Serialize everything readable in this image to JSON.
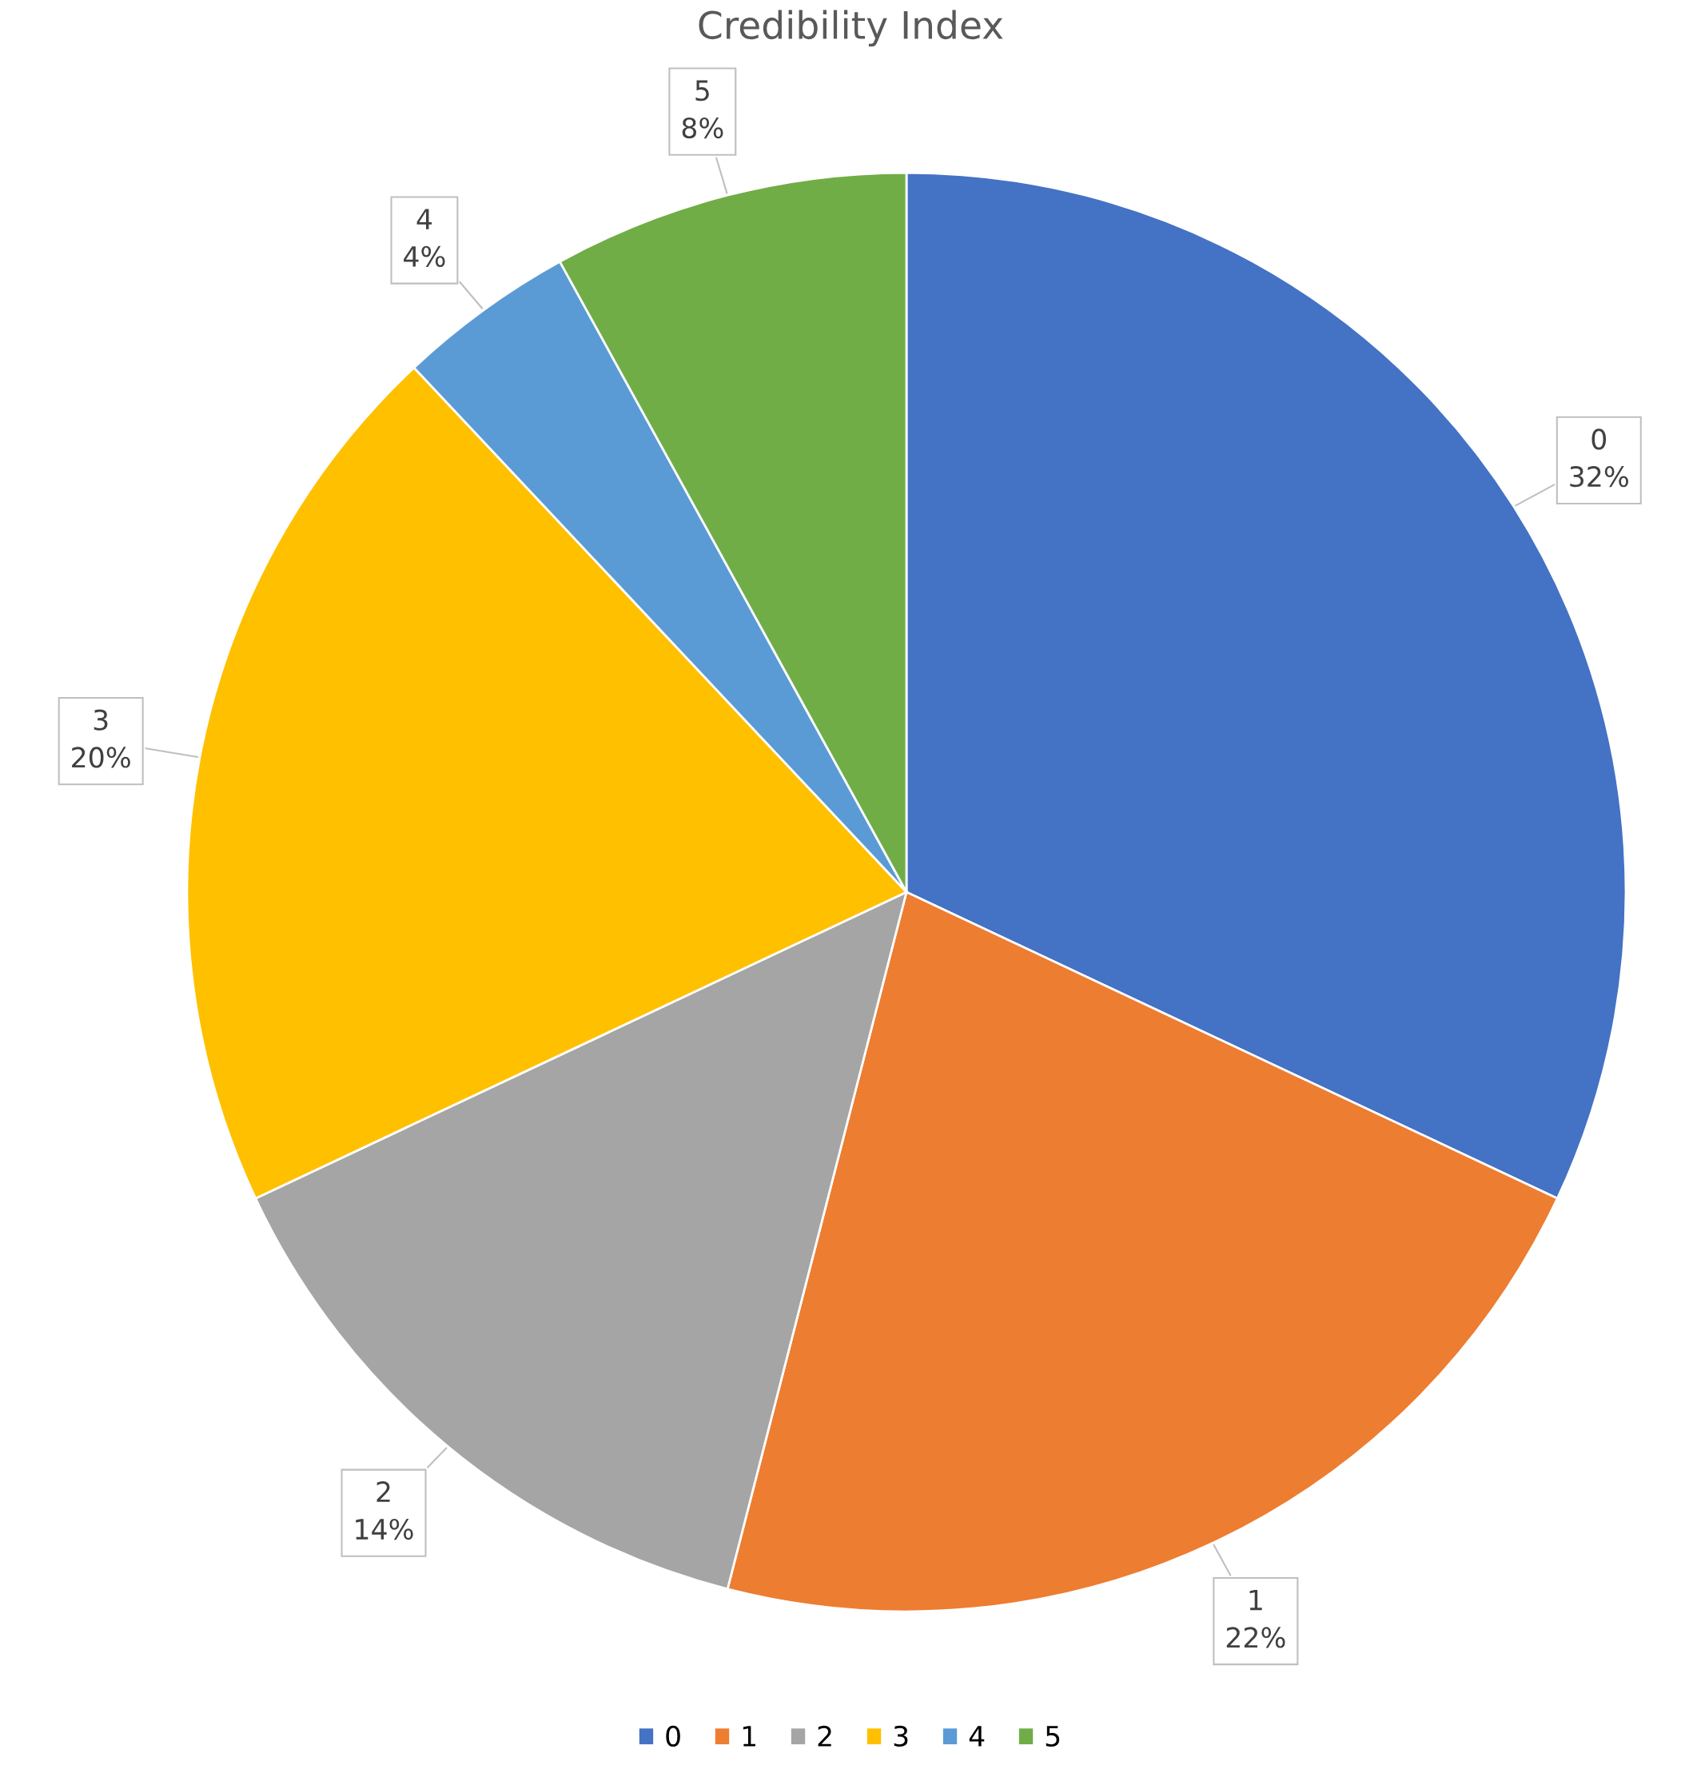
{
  "chart_data": {
    "type": "pie",
    "title": "Credibility Index",
    "categories": [
      "0",
      "1",
      "2",
      "3",
      "4",
      "5"
    ],
    "values": [
      32,
      22,
      14,
      20,
      4,
      8
    ],
    "value_labels": [
      "32%",
      "22%",
      "14%",
      "20%",
      "4%",
      "8%"
    ],
    "colors": [
      "#4472c4",
      "#ed7d31",
      "#a5a5a5",
      "#ffc000",
      "#5b9bd5",
      "#70ad47"
    ],
    "legend": "bottom"
  }
}
